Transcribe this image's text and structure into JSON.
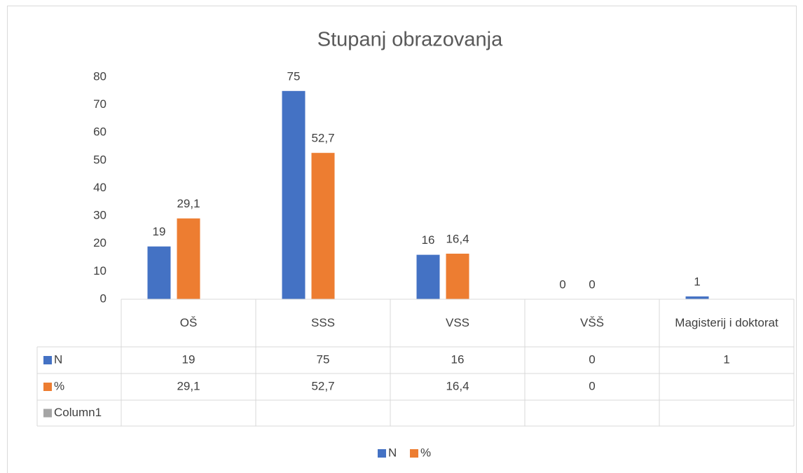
{
  "chart_data": {
    "type": "bar",
    "title": "Stupanj obrazovanja",
    "categories": [
      "OŠ",
      "SSS",
      "VSS",
      "VŠŠ",
      "Magisterij i doktorat"
    ],
    "series": [
      {
        "name": "N",
        "color": "#4472c4",
        "values": [
          19,
          75,
          16,
          0,
          1
        ]
      },
      {
        "name": "%",
        "color": "#ed7d31",
        "values": [
          29.1,
          52.7,
          16.4,
          0,
          null
        ],
        "value_labels": [
          "29,1",
          "52,7",
          "16,4",
          "0",
          null
        ]
      },
      {
        "name": "Column1",
        "color": "#a5a5a5",
        "values": [
          null,
          null,
          null,
          null,
          null
        ]
      }
    ],
    "ylim": [
      0,
      80
    ],
    "yticks": [
      0,
      10,
      20,
      30,
      40,
      50,
      60,
      70,
      80
    ],
    "grid": false,
    "legend": "bottom"
  }
}
